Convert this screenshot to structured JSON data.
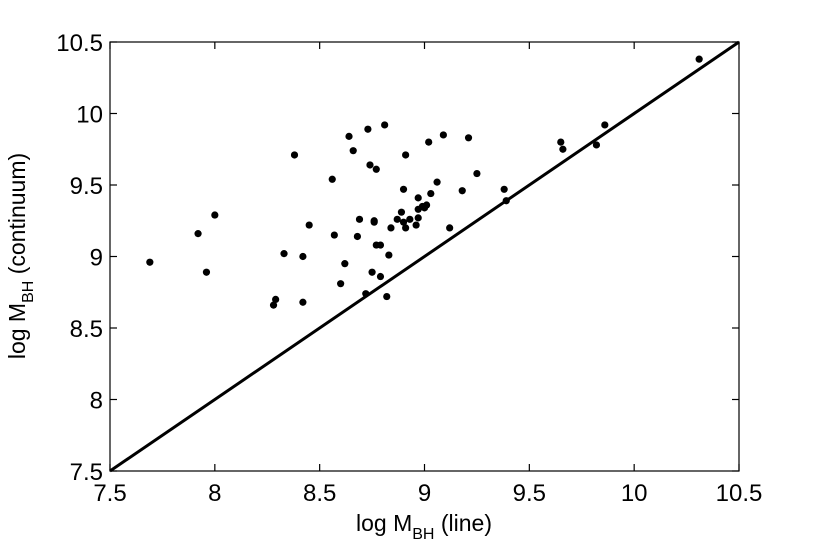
{
  "chart_data": {
    "type": "scatter",
    "title": "",
    "xlabel": {
      "prefix": "log M",
      "sub": "BH",
      "suffix": " (line)"
    },
    "ylabel": {
      "prefix": "log M",
      "sub": "BH",
      "suffix": " (continuum)"
    },
    "xlim": [
      7.5,
      10.5
    ],
    "ylim": [
      7.5,
      10.5
    ],
    "xticks": [
      "7.5",
      "8",
      "8.5",
      "9",
      "9.5",
      "10",
      "10.5"
    ],
    "yticks": [
      "7.5",
      "8",
      "8.5",
      "9",
      "9.5",
      "10",
      "10.5"
    ],
    "grid": false,
    "legend": "none",
    "reference_line": {
      "from": [
        7.5,
        7.5
      ],
      "to": [
        10.5,
        10.5
      ]
    },
    "colors": {
      "points": "#000000",
      "line": "#000000",
      "axes": "#000000"
    },
    "series": [
      {
        "points": [
          [
            7.69,
            8.96
          ],
          [
            7.92,
            9.16
          ],
          [
            7.96,
            8.89
          ],
          [
            8.0,
            9.29
          ],
          [
            8.28,
            8.66
          ],
          [
            8.29,
            8.7
          ],
          [
            8.33,
            9.02
          ],
          [
            8.38,
            9.71
          ],
          [
            8.42,
            9.0
          ],
          [
            8.42,
            8.68
          ],
          [
            8.45,
            9.22
          ],
          [
            8.56,
            9.54
          ],
          [
            8.57,
            9.15
          ],
          [
            8.6,
            8.81
          ],
          [
            8.62,
            8.95
          ],
          [
            8.64,
            9.84
          ],
          [
            8.66,
            9.74
          ],
          [
            8.68,
            9.14
          ],
          [
            8.69,
            9.26
          ],
          [
            8.72,
            8.74
          ],
          [
            8.73,
            9.89
          ],
          [
            8.74,
            9.64
          ],
          [
            8.75,
            8.89
          ],
          [
            8.76,
            9.25
          ],
          [
            8.76,
            9.24
          ],
          [
            8.77,
            9.61
          ],
          [
            8.77,
            9.08
          ],
          [
            8.79,
            8.86
          ],
          [
            8.79,
            9.08
          ],
          [
            8.81,
            9.92
          ],
          [
            8.82,
            8.72
          ],
          [
            8.83,
            9.01
          ],
          [
            8.84,
            9.2
          ],
          [
            8.87,
            9.26
          ],
          [
            8.89,
            9.31
          ],
          [
            8.9,
            9.24
          ],
          [
            8.9,
            9.47
          ],
          [
            8.91,
            9.71
          ],
          [
            8.91,
            9.2
          ],
          [
            8.93,
            9.26
          ],
          [
            8.96,
            9.22
          ],
          [
            8.97,
            9.33
          ],
          [
            8.97,
            9.41
          ],
          [
            8.97,
            9.27
          ],
          [
            8.99,
            9.35
          ],
          [
            9.0,
            9.34
          ],
          [
            9.01,
            9.36
          ],
          [
            9.02,
            9.8
          ],
          [
            9.03,
            9.44
          ],
          [
            9.06,
            9.52
          ],
          [
            9.09,
            9.85
          ],
          [
            9.12,
            9.2
          ],
          [
            9.18,
            9.46
          ],
          [
            9.21,
            9.83
          ],
          [
            9.25,
            9.58
          ],
          [
            9.38,
            9.47
          ],
          [
            9.39,
            9.39
          ],
          [
            9.65,
            9.8
          ],
          [
            9.66,
            9.75
          ],
          [
            9.82,
            9.78
          ],
          [
            9.86,
            9.92
          ],
          [
            10.31,
            10.38
          ]
        ]
      }
    ]
  }
}
